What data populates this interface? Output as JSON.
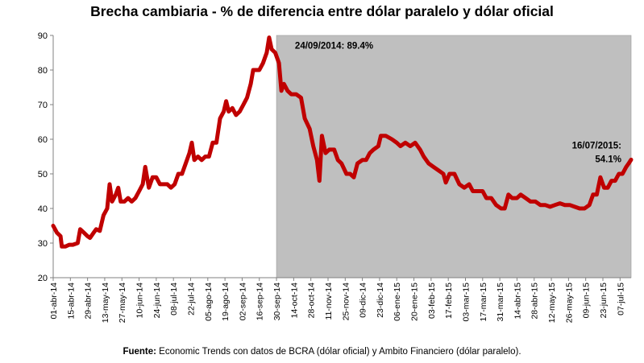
{
  "chart_data": {
    "type": "line",
    "title": "Brecha cambiaria - % de diferencia entre dólar paralelo y dólar oficial",
    "xlabel": "",
    "ylabel": "",
    "ylim": [
      20,
      90
    ],
    "y_ticks": [
      "20",
      "30",
      "40",
      "50",
      "60",
      "70",
      "80",
      "90"
    ],
    "x_ticks": [
      "01-abr-14",
      "15-abr-14",
      "29-abr-14",
      "13-may-14",
      "27-may-14",
      "10-jun-14",
      "24-jun-14",
      "08-jul-14",
      "22-jul-14",
      "05-ago-14",
      "19-ago-14",
      "02-sep-14",
      "16-sep-14",
      "30-sep-14",
      "14-oct-14",
      "28-oct-14",
      "11-nov-14",
      "25-nov-14",
      "09-dic-14",
      "23-dic-14",
      "06-ene-15",
      "20-ene-15",
      "03-feb-15",
      "17-feb-15",
      "03-mar-15",
      "17-mar-15",
      "31-mar-15",
      "14-abr-15",
      "28-abr-15",
      "12-may-15",
      "26-may-15",
      "09-jun-15",
      "23-jun-15",
      "07-jul-15"
    ],
    "shaded_region": {
      "from": "2014-09-30",
      "to": "2015-07-16",
      "color": "#bfbfbf"
    },
    "line_color": "#c00000",
    "grid": false,
    "annotations": [
      {
        "label": "24/09/2014:  89.4%",
        "x": "2014-09-24",
        "y": 89.4
      },
      {
        "label_line1": "16/07/2015:",
        "label_line2": "54.1%",
        "x": "2015-07-16",
        "y": 54.1
      }
    ],
    "series": [
      {
        "points": [
          [
            "2014-04-01",
            35
          ],
          [
            "2014-04-04",
            33
          ],
          [
            "2014-04-07",
            32
          ],
          [
            "2014-04-08",
            29
          ],
          [
            "2014-04-11",
            29
          ],
          [
            "2014-04-14",
            29.5
          ],
          [
            "2014-04-17",
            29.5
          ],
          [
            "2014-04-21",
            30
          ],
          [
            "2014-04-23",
            34
          ],
          [
            "2014-04-26",
            33
          ],
          [
            "2014-04-29",
            32
          ],
          [
            "2014-05-01",
            31.5
          ],
          [
            "2014-05-04",
            33
          ],
          [
            "2014-05-06",
            34
          ],
          [
            "2014-05-09",
            33.5
          ],
          [
            "2014-05-12",
            38
          ],
          [
            "2014-05-15",
            40
          ],
          [
            "2014-05-17",
            47
          ],
          [
            "2014-05-19",
            42
          ],
          [
            "2014-05-22",
            44
          ],
          [
            "2014-05-24",
            46
          ],
          [
            "2014-05-26",
            42
          ],
          [
            "2014-05-29",
            42
          ],
          [
            "2014-06-01",
            43
          ],
          [
            "2014-06-04",
            42
          ],
          [
            "2014-06-07",
            43
          ],
          [
            "2014-06-10",
            45
          ],
          [
            "2014-06-13",
            47
          ],
          [
            "2014-06-15",
            52
          ],
          [
            "2014-06-18",
            46
          ],
          [
            "2014-06-21",
            49
          ],
          [
            "2014-06-24",
            49
          ],
          [
            "2014-06-27",
            47
          ],
          [
            "2014-06-30",
            47
          ],
          [
            "2014-07-03",
            47
          ],
          [
            "2014-07-06",
            46
          ],
          [
            "2014-07-09",
            47
          ],
          [
            "2014-07-12",
            50
          ],
          [
            "2014-07-15",
            50
          ],
          [
            "2014-07-18",
            53
          ],
          [
            "2014-07-21",
            56
          ],
          [
            "2014-07-23",
            59
          ],
          [
            "2014-07-25",
            54
          ],
          [
            "2014-07-28",
            55
          ],
          [
            "2014-07-31",
            54
          ],
          [
            "2014-08-03",
            55
          ],
          [
            "2014-08-06",
            55
          ],
          [
            "2014-08-09",
            59
          ],
          [
            "2014-08-12",
            59
          ],
          [
            "2014-08-15",
            66
          ],
          [
            "2014-08-18",
            68
          ],
          [
            "2014-08-20",
            71
          ],
          [
            "2014-08-22",
            68
          ],
          [
            "2014-08-25",
            69
          ],
          [
            "2014-08-28",
            67
          ],
          [
            "2014-08-31",
            68
          ],
          [
            "2014-09-03",
            70
          ],
          [
            "2014-09-06",
            72
          ],
          [
            "2014-09-09",
            76
          ],
          [
            "2014-09-11",
            80
          ],
          [
            "2014-09-13",
            80
          ],
          [
            "2014-09-16",
            80
          ],
          [
            "2014-09-19",
            82
          ],
          [
            "2014-09-22",
            85
          ],
          [
            "2014-09-24",
            89.4
          ],
          [
            "2014-09-26",
            86
          ],
          [
            "2014-09-29",
            85
          ],
          [
            "2014-10-02",
            82
          ],
          [
            "2014-10-04",
            74
          ],
          [
            "2014-10-06",
            76
          ],
          [
            "2014-10-09",
            74
          ],
          [
            "2014-10-12",
            73
          ],
          [
            "2014-10-16",
            73
          ],
          [
            "2014-10-20",
            72
          ],
          [
            "2014-10-23",
            66
          ],
          [
            "2014-10-27",
            63
          ],
          [
            "2014-10-30",
            58
          ],
          [
            "2014-11-02",
            54
          ],
          [
            "2014-11-04",
            48
          ],
          [
            "2014-11-06",
            61
          ],
          [
            "2014-11-09",
            56
          ],
          [
            "2014-11-12",
            57
          ],
          [
            "2014-11-16",
            57
          ],
          [
            "2014-11-19",
            54
          ],
          [
            "2014-11-22",
            53
          ],
          [
            "2014-11-26",
            50
          ],
          [
            "2014-11-29",
            50
          ],
          [
            "2014-12-02",
            49
          ],
          [
            "2014-12-05",
            53
          ],
          [
            "2014-12-09",
            54
          ],
          [
            "2014-12-12",
            54
          ],
          [
            "2014-12-15",
            56
          ],
          [
            "2014-12-18",
            57
          ],
          [
            "2014-12-22",
            58
          ],
          [
            "2014-12-24",
            61
          ],
          [
            "2014-12-28",
            61
          ],
          [
            "2015-01-02",
            60
          ],
          [
            "2015-01-06",
            59
          ],
          [
            "2015-01-09",
            58
          ],
          [
            "2015-01-13",
            59
          ],
          [
            "2015-01-17",
            58
          ],
          [
            "2015-01-21",
            59
          ],
          [
            "2015-01-25",
            57
          ],
          [
            "2015-01-28",
            55
          ],
          [
            "2015-02-01",
            53
          ],
          [
            "2015-02-05",
            52
          ],
          [
            "2015-02-09",
            51
          ],
          [
            "2015-02-13",
            50
          ],
          [
            "2015-02-15",
            47.5
          ],
          [
            "2015-02-18",
            50
          ],
          [
            "2015-02-22",
            50
          ],
          [
            "2015-02-26",
            47
          ],
          [
            "2015-03-02",
            46
          ],
          [
            "2015-03-06",
            47
          ],
          [
            "2015-03-09",
            45
          ],
          [
            "2015-03-13",
            45
          ],
          [
            "2015-03-17",
            45
          ],
          [
            "2015-03-20",
            43
          ],
          [
            "2015-03-24",
            43
          ],
          [
            "2015-03-28",
            41
          ],
          [
            "2015-04-01",
            40
          ],
          [
            "2015-04-04",
            40
          ],
          [
            "2015-04-07",
            44
          ],
          [
            "2015-04-10",
            43
          ],
          [
            "2015-04-14",
            43
          ],
          [
            "2015-04-17",
            44
          ],
          [
            "2015-04-21",
            43
          ],
          [
            "2015-04-25",
            42
          ],
          [
            "2015-04-29",
            42
          ],
          [
            "2015-05-03",
            41
          ],
          [
            "2015-05-07",
            41
          ],
          [
            "2015-05-11",
            40.5
          ],
          [
            "2015-05-15",
            41
          ],
          [
            "2015-05-19",
            41.5
          ],
          [
            "2015-05-23",
            41
          ],
          [
            "2015-05-27",
            41
          ],
          [
            "2015-05-31",
            40.5
          ],
          [
            "2015-06-04",
            40
          ],
          [
            "2015-06-08",
            40
          ],
          [
            "2015-06-12",
            41
          ],
          [
            "2015-06-15",
            44
          ],
          [
            "2015-06-18",
            44
          ],
          [
            "2015-06-21",
            49
          ],
          [
            "2015-06-24",
            46
          ],
          [
            "2015-06-27",
            46
          ],
          [
            "2015-06-30",
            48
          ],
          [
            "2015-07-03",
            48
          ],
          [
            "2015-07-06",
            50
          ],
          [
            "2015-07-09",
            50
          ],
          [
            "2015-07-12",
            52
          ],
          [
            "2015-07-14",
            53
          ],
          [
            "2015-07-16",
            54.1
          ]
        ]
      }
    ]
  },
  "source": {
    "label": "Fuente:",
    "text": " Economic Trends con datos de BCRA (dólar oficial) y Ambito Financiero (dólar paralelo)."
  }
}
